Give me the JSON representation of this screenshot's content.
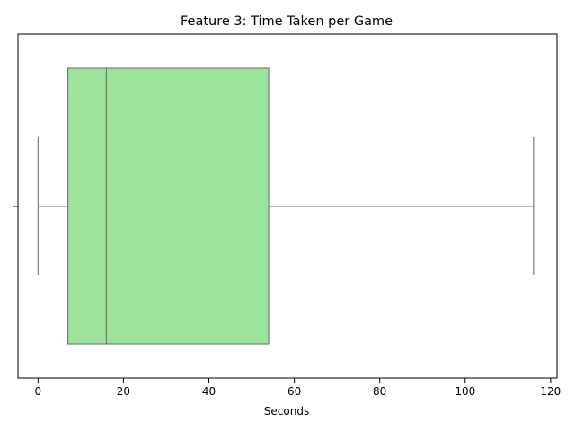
{
  "chart_data": {
    "type": "box",
    "title": "Feature 3: Time Taken per Game",
    "xlabel": "Seconds",
    "ylabel": "",
    "orientation": "horizontal",
    "xlim": [
      -4.7,
      121.5
    ],
    "xticks": [
      0,
      20,
      40,
      60,
      80,
      100,
      120
    ],
    "box": {
      "whisker_low": 0,
      "q1": 7,
      "median": 16,
      "q3": 54,
      "whisker_high": 116
    },
    "grid": false,
    "colors": {
      "box_fill": "#9de39b",
      "line": "#707070",
      "axis": "#000000"
    }
  }
}
